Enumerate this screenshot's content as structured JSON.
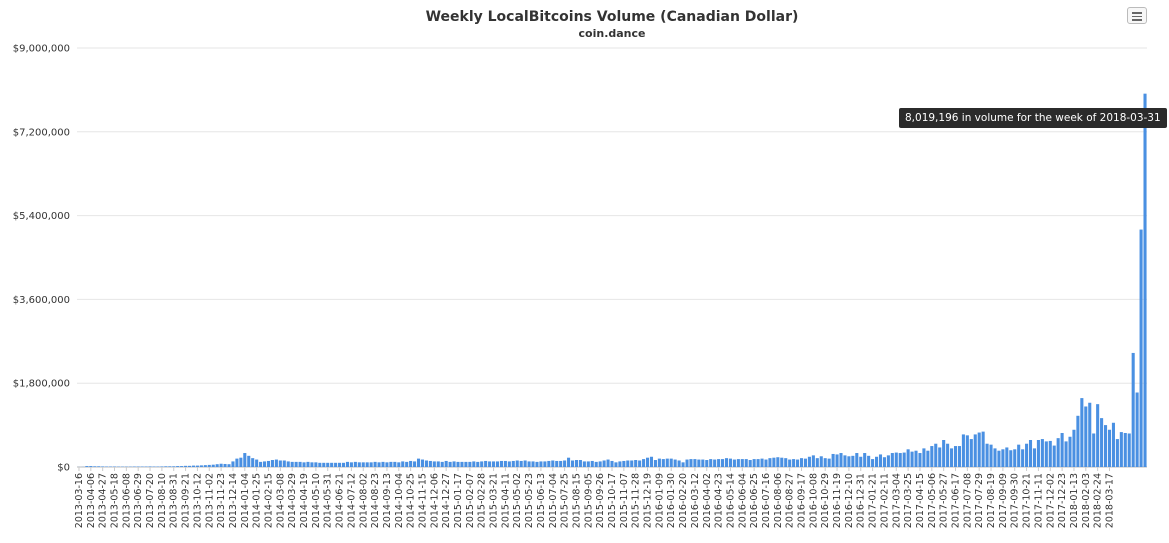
{
  "chart_data": {
    "type": "bar",
    "title": "Weekly LocalBitcoins Volume (Canadian Dollar)",
    "subtitle": "coin.dance",
    "xlabel": "",
    "ylabel": "",
    "ylim": [
      0,
      9000000
    ],
    "y_ticks": [
      "$0",
      "$1,800,000",
      "$3,600,000",
      "$5,400,000",
      "$7,200,000",
      "$9,000,000"
    ],
    "y_tick_values": [
      0,
      1800000,
      3600000,
      5400000,
      7200000,
      9000000
    ],
    "x_tick_labels": [
      "2013-03-16",
      "2013-04-06",
      "2013-04-27",
      "2013-05-18",
      "2013-06-08",
      "2013-06-29",
      "2013-07-20",
      "2013-08-10",
      "2013-08-31",
      "2013-09-21",
      "2013-10-12",
      "2013-11-02",
      "2013-11-23",
      "2013-12-14",
      "2014-01-04",
      "2014-01-25",
      "2014-02-15",
      "2014-03-08",
      "2014-03-29",
      "2014-04-19",
      "2014-05-10",
      "2014-05-31",
      "2014-06-21",
      "2014-07-12",
      "2014-08-02",
      "2014-08-23",
      "2014-09-13",
      "2014-10-04",
      "2014-10-25",
      "2014-11-15",
      "2014-12-06",
      "2014-12-27",
      "2015-01-17",
      "2015-02-07",
      "2015-02-28",
      "2015-03-21",
      "2015-04-11",
      "2015-05-02",
      "2015-05-23",
      "2015-06-13",
      "2015-07-04",
      "2015-07-25",
      "2015-08-15",
      "2015-09-05",
      "2015-09-26",
      "2015-10-17",
      "2015-11-07",
      "2015-11-28",
      "2015-12-19",
      "2016-01-09",
      "2016-01-30",
      "2016-02-20",
      "2016-03-12",
      "2016-04-02",
      "2016-04-23",
      "2016-05-14",
      "2016-06-04",
      "2016-06-25",
      "2016-07-16",
      "2016-08-06",
      "2016-08-27",
      "2016-09-17",
      "2016-10-08",
      "2016-10-29",
      "2016-11-19",
      "2016-12-10",
      "2016-12-31",
      "2017-01-21",
      "2017-02-11",
      "2017-03-04",
      "2017-03-25",
      "2017-04-15",
      "2017-05-06",
      "2017-05-27",
      "2017-06-17",
      "2017-07-08",
      "2017-07-29",
      "2017-08-19",
      "2017-09-09",
      "2017-09-30",
      "2017-10-21",
      "2017-11-11",
      "2017-12-02",
      "2017-12-23",
      "2018-01-13",
      "2018-02-03",
      "2018-02-24",
      "2018-03-17"
    ],
    "series": [
      {
        "color": "#4a90e2",
        "values": [
          2000,
          3000,
          20000,
          20000,
          15000,
          15000,
          12000,
          10000,
          10000,
          10000,
          8000,
          8000,
          8000,
          8000,
          10000,
          10000,
          10000,
          10000,
          12000,
          10000,
          10000,
          12000,
          15000,
          15000,
          15000,
          20000,
          20000,
          25000,
          25000,
          30000,
          30000,
          35000,
          40000,
          45000,
          50000,
          60000,
          70000,
          65000,
          60000,
          120000,
          180000,
          200000,
          300000,
          240000,
          190000,
          160000,
          110000,
          120000,
          130000,
          150000,
          160000,
          140000,
          140000,
          120000,
          110000,
          110000,
          110000,
          100000,
          110000,
          100000,
          100000,
          90000,
          90000,
          90000,
          90000,
          90000,
          90000,
          90000,
          110000,
          100000,
          110000,
          100000,
          100000,
          100000,
          100000,
          110000,
          100000,
          110000,
          100000,
          110000,
          110000,
          100000,
          120000,
          110000,
          130000,
          120000,
          180000,
          160000,
          140000,
          130000,
          120000,
          120000,
          110000,
          130000,
          110000,
          120000,
          110000,
          110000,
          110000,
          110000,
          120000,
          110000,
          120000,
          130000,
          120000,
          120000,
          120000,
          130000,
          130000,
          120000,
          130000,
          140000,
          130000,
          140000,
          120000,
          120000,
          110000,
          120000,
          120000,
          130000,
          140000,
          130000,
          130000,
          140000,
          200000,
          140000,
          150000,
          150000,
          120000,
          120000,
          130000,
          110000,
          120000,
          140000,
          160000,
          130000,
          100000,
          120000,
          130000,
          140000,
          140000,
          150000,
          140000,
          170000,
          200000,
          220000,
          150000,
          180000,
          170000,
          180000,
          180000,
          160000,
          140000,
          100000,
          160000,
          170000,
          170000,
          160000,
          160000,
          150000,
          170000,
          160000,
          170000,
          170000,
          190000,
          180000,
          160000,
          170000,
          170000,
          170000,
          150000,
          170000,
          170000,
          180000,
          160000,
          190000,
          200000,
          210000,
          200000,
          190000,
          160000,
          170000,
          160000,
          190000,
          180000,
          220000,
          250000,
          190000,
          230000,
          190000,
          180000,
          280000,
          270000,
          300000,
          250000,
          230000,
          240000,
          300000,
          220000,
          300000,
          240000,
          170000,
          220000,
          270000,
          210000,
          250000,
          300000,
          310000,
          300000,
          310000,
          380000,
          330000,
          350000,
          300000,
          400000,
          350000,
          450000,
          500000,
          420000,
          580000,
          500000,
          400000,
          450000,
          450000,
          700000,
          680000,
          600000,
          700000,
          740000,
          760000,
          500000,
          480000,
          400000,
          350000,
          380000,
          420000,
          360000,
          380000,
          480000,
          380000,
          500000,
          580000,
          400000,
          580000,
          600000,
          550000,
          560000,
          460000,
          620000,
          730000,
          550000,
          650000,
          800000,
          1100000,
          1480000,
          1300000,
          1380000,
          720000,
          1350000,
          1050000,
          900000,
          800000,
          950000,
          600000,
          750000,
          730000,
          720000,
          2450000,
          1600000,
          5100000,
          8019196
        ]
      }
    ],
    "tooltip": "8,019,196 in volume for the week of 2018-03-31"
  },
  "icons": {
    "menu": "hamburger-menu-icon"
  }
}
